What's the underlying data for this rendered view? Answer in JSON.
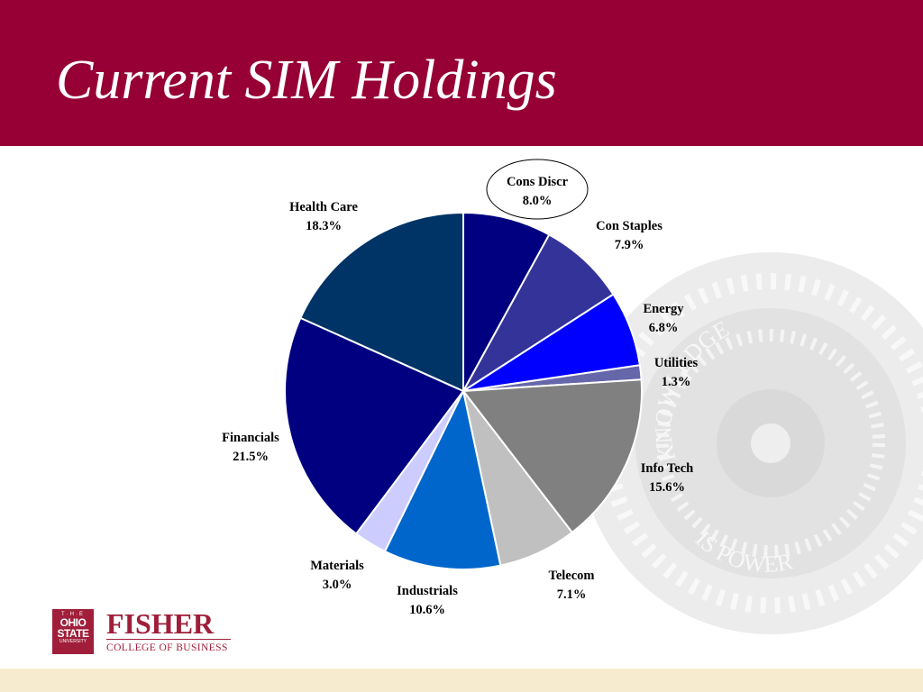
{
  "slide": {
    "title": "Current SIM Holdings"
  },
  "watermark": {
    "motto_top": "KNOWLEDGE",
    "motto_bottom": "IS POWER",
    "color": "#e6e6e6"
  },
  "logo": {
    "seal_top": "T·H·E",
    "seal_line1": "OHIO",
    "seal_line2": "STATE",
    "seal_line3": "UNIVERSITY",
    "name": "FISHER",
    "subtitle": "COLLEGE OF BUSINESS",
    "color": "#a01e3a"
  },
  "colors": {
    "header": "#960034",
    "footer_band": "#f6ebcf"
  },
  "chart_data": {
    "type": "pie",
    "title": "",
    "start": "12 o'clock",
    "direction": "clockwise",
    "slices": [
      {
        "label": "Cons Discr",
        "value": 8.0,
        "value_label": "8.0%",
        "color": "#000080",
        "highlighted": true
      },
      {
        "label": "Con Staples",
        "value": 7.9,
        "value_label": "7.9%",
        "color": "#333399"
      },
      {
        "label": "Energy",
        "value": 6.8,
        "value_label": "6.8%",
        "color": "#0000ff"
      },
      {
        "label": "Utilities",
        "value": 1.3,
        "value_label": "1.3%",
        "color": "#6666aa"
      },
      {
        "label": "Info Tech",
        "value": 15.6,
        "value_label": "15.6%",
        "color": "#808080"
      },
      {
        "label": "Telecom",
        "value": 7.1,
        "value_label": "7.1%",
        "color": "#c0c0c0"
      },
      {
        "label": "Industrials",
        "value": 10.6,
        "value_label": "10.6%",
        "color": "#0066cc"
      },
      {
        "label": "Materials",
        "value": 3.0,
        "value_label": "3.0%",
        "color": "#ccccff"
      },
      {
        "label": "Financials",
        "value": 21.5,
        "value_label": "21.5%",
        "color": "#000080"
      },
      {
        "label": "Health Care",
        "value": 18.3,
        "value_label": "18.3%",
        "color": "#003366"
      }
    ]
  }
}
